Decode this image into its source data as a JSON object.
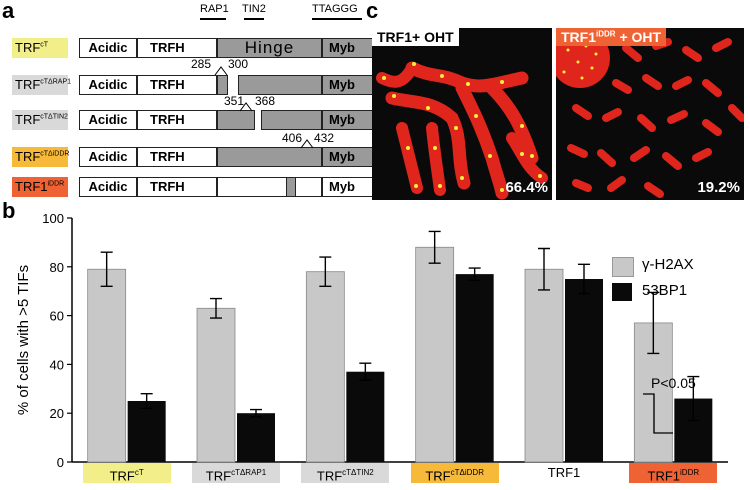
{
  "panel_a": {
    "letter": "a",
    "markers": {
      "rap1": "RAP1",
      "tin2": "TIN2",
      "telomere": "TTAGGG"
    },
    "domains": {
      "acidic": "Acidic",
      "trfh": "TRFH",
      "hinge": "Hinge",
      "myb": "Myb"
    },
    "rows": [
      {
        "base": "TRF",
        "sup": "cT",
        "color": "#f2ef8a"
      },
      {
        "base": "TRF",
        "sup": "cTΔRAP1",
        "color": "#d9d9d9",
        "del_start": "285",
        "del_end": "300"
      },
      {
        "base": "TRF",
        "sup": "cTΔTIN2",
        "color": "#d9d9d9",
        "del_start": "351",
        "del_end": "368"
      },
      {
        "base": "TRF",
        "sup": "cTΔiDDR",
        "color": "#f7b93a",
        "del_start": "406",
        "del_end": "432"
      },
      {
        "base": "TRF1",
        "sup": "iDDR",
        "color": "#ef6233"
      }
    ]
  },
  "panel_c": {
    "letter": "c",
    "images": [
      {
        "title_base": "TRF1+ OHT",
        "title_sup": "",
        "percent": "66.4%",
        "title_bg": "#ffffff",
        "title_color": "#000000"
      },
      {
        "title_base": "TRF1",
        "title_sup": "iDDR",
        "title_suffix": " + OHT",
        "percent": "19.2%",
        "title_bg": "#ef6233",
        "title_color": "#ffffff"
      }
    ]
  },
  "panel_b": {
    "letter": "b",
    "annotation": "P<0.05"
  },
  "chart_data": {
    "type": "bar",
    "ylabel": "% of cells with >5 TIFs",
    "ylim": [
      0,
      100
    ],
    "yticks": [
      0,
      20,
      40,
      60,
      80,
      100
    ],
    "categories": [
      {
        "base": "TRF",
        "sup": "cT",
        "bg": "#f2ef8a"
      },
      {
        "base": "TRF",
        "sup": "cTΔRAP1",
        "bg": "#d9d9d9"
      },
      {
        "base": "TRF",
        "sup": "cTΔTIN2",
        "bg": "#d9d9d9"
      },
      {
        "base": "TRF",
        "sup": "cTΔiDDR",
        "bg": "#f7b93a"
      },
      {
        "base": "TRF1",
        "sup": "",
        "bg": "#ffffff"
      },
      {
        "base": "TRF1",
        "sup": "iDDR",
        "bg": "#ef6233"
      }
    ],
    "series": [
      {
        "name": "γ-H2AX",
        "color": "#c8c8c8",
        "values": [
          79,
          63,
          78,
          88,
          79,
          57
        ],
        "errors": [
          7,
          4,
          6,
          6.5,
          8.5,
          12.5
        ]
      },
      {
        "name": "53BP1",
        "color": "#0a0a0a",
        "values": [
          25,
          20,
          37,
          77,
          75,
          26
        ],
        "errors": [
          3,
          1.5,
          3.5,
          2.5,
          6,
          9
        ]
      }
    ],
    "legend_position": "top-right"
  }
}
